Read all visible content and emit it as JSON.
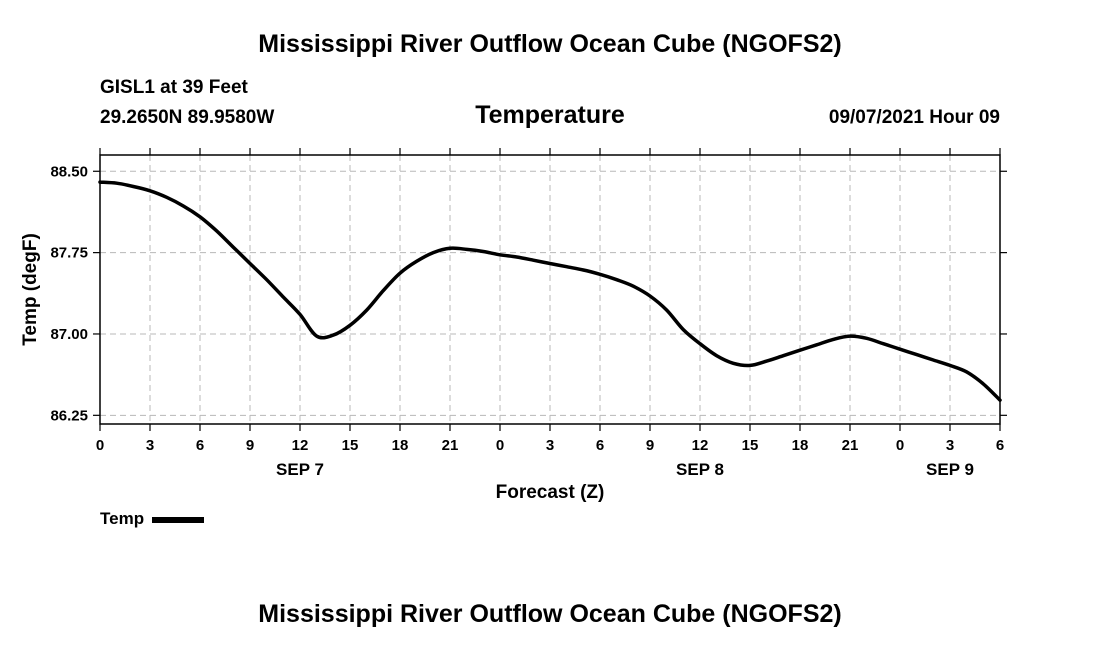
{
  "page": {
    "top_title": "Mississippi River Outflow Ocean Cube (NGOFS2)",
    "bottom_title": "Mississippi River Outflow Ocean Cube (NGOFS2)",
    "station_line": "GISL1 at 39 Feet",
    "coords_line": "29.2650N  89.9580W",
    "date_line": "09/07/2021 Hour 09"
  },
  "chart_data": {
    "type": "line",
    "title": "Temperature",
    "xlabel": "Forecast (Z)",
    "ylabel": "Temp (degF)",
    "ylim": [
      86.17,
      88.65
    ],
    "yticks": [
      86.25,
      87.0,
      87.75,
      88.5
    ],
    "ytick_labels": [
      "86.25",
      "87.00",
      "87.75",
      "88.50"
    ],
    "xlim": [
      0,
      54
    ],
    "xticks": [
      0,
      3,
      6,
      9,
      12,
      15,
      18,
      21,
      24,
      27,
      30,
      33,
      36,
      39,
      42,
      45,
      48,
      51,
      54
    ],
    "xtick_labels": [
      "0",
      "3",
      "6",
      "9",
      "12",
      "15",
      "18",
      "21",
      "0",
      "3",
      "6",
      "9",
      "12",
      "15",
      "18",
      "21",
      "0",
      "3",
      "6"
    ],
    "day_labels": [
      {
        "x": 12,
        "label": "SEP 7"
      },
      {
        "x": 36,
        "label": "SEP 8"
      },
      {
        "x": 51,
        "label": "SEP 9"
      }
    ],
    "grid": true,
    "legend": {
      "position": "bottom-left",
      "entries": [
        "Temp"
      ]
    },
    "series": [
      {
        "name": "Temp",
        "x": [
          0,
          1,
          2,
          3,
          4,
          5,
          6,
          7,
          8,
          9,
          10,
          11,
          12,
          13,
          14,
          15,
          16,
          17,
          18,
          19,
          20,
          21,
          22,
          23,
          24,
          25,
          26,
          27,
          28,
          29,
          30,
          31,
          32,
          33,
          34,
          35,
          36,
          37,
          38,
          39,
          40,
          41,
          42,
          43,
          44,
          45,
          46,
          47,
          48,
          49,
          50,
          51,
          52,
          53,
          54
        ],
        "values": [
          88.4,
          88.39,
          88.36,
          88.32,
          88.26,
          88.18,
          88.08,
          87.95,
          87.8,
          87.65,
          87.5,
          87.34,
          87.18,
          86.98,
          86.99,
          87.08,
          87.22,
          87.4,
          87.56,
          87.67,
          87.75,
          87.79,
          87.78,
          87.76,
          87.73,
          87.71,
          87.68,
          87.65,
          87.62,
          87.59,
          87.55,
          87.5,
          87.44,
          87.35,
          87.22,
          87.04,
          86.91,
          86.8,
          86.73,
          86.71,
          86.75,
          86.8,
          86.85,
          86.9,
          86.95,
          86.98,
          86.96,
          86.91,
          86.86,
          86.81,
          86.76,
          86.71,
          86.65,
          86.54,
          86.39
        ]
      }
    ]
  }
}
